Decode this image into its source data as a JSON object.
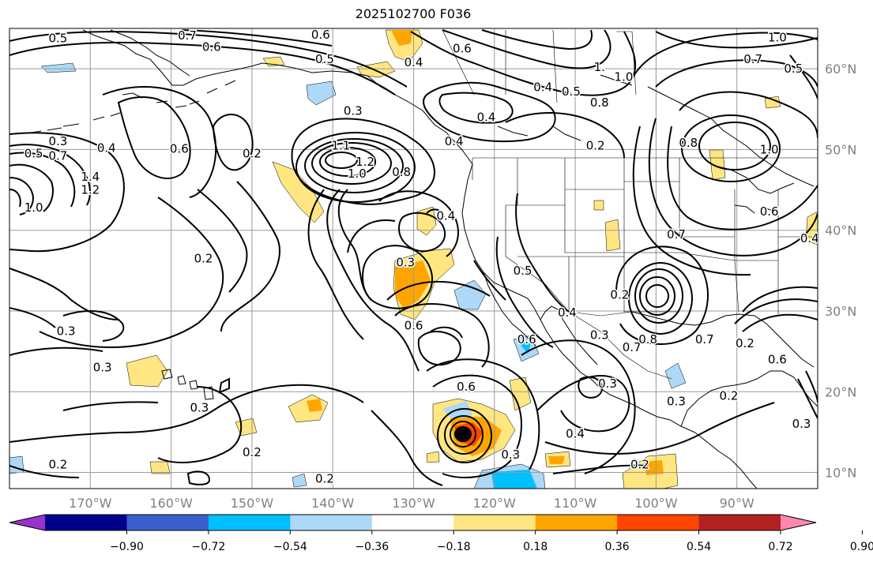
{
  "title": "2025102700 F036",
  "map": {
    "lon_range": [
      -180,
      -80
    ],
    "lat_range": [
      8,
      65
    ],
    "lon_ticks": [
      {
        "value": -170,
        "label": "170°W"
      },
      {
        "value": -160,
        "label": "160°W"
      },
      {
        "value": -150,
        "label": "150°W"
      },
      {
        "value": -140,
        "label": "140°W"
      },
      {
        "value": -130,
        "label": "130°W"
      },
      {
        "value": -120,
        "label": "120°W"
      },
      {
        "value": -110,
        "label": "110°W"
      },
      {
        "value": -100,
        "label": "100°W"
      },
      {
        "value": -90,
        "label": "90°W"
      }
    ],
    "lat_ticks": [
      {
        "value": 60,
        "label": "60°N"
      },
      {
        "value": 50,
        "label": "50°N"
      },
      {
        "value": 40,
        "label": "40°N"
      },
      {
        "value": 30,
        "label": "30°N"
      },
      {
        "value": 20,
        "label": "20°N"
      },
      {
        "value": 10,
        "label": "10°N"
      }
    ],
    "contour_labels": [
      {
        "lon": -174,
        "lat": 63.8,
        "text": "0.5"
      },
      {
        "lon": -158,
        "lat": 64.1,
        "text": "0.7"
      },
      {
        "lon": -155,
        "lat": 62.7,
        "text": "0.6"
      },
      {
        "lon": -141,
        "lat": 61.2,
        "text": "0.5"
      },
      {
        "lon": -141.5,
        "lat": 64.2,
        "text": "0.6"
      },
      {
        "lon": -130,
        "lat": 60.8,
        "text": "0.4"
      },
      {
        "lon": -124,
        "lat": 62.5,
        "text": "0.6"
      },
      {
        "lon": -107,
        "lat": 60.2,
        "text": "1."
      },
      {
        "lon": -88,
        "lat": 61.2,
        "text": "0.7"
      },
      {
        "lon": -85,
        "lat": 63.9,
        "text": "1.0"
      },
      {
        "lon": -83,
        "lat": 60.0,
        "text": "0.5"
      },
      {
        "lon": -104,
        "lat": 59.0,
        "text": "1.0"
      },
      {
        "lon": -110.5,
        "lat": 57.2,
        "text": "0.5"
      },
      {
        "lon": -114,
        "lat": 57.7,
        "text": "0.4"
      },
      {
        "lon": -107,
        "lat": 55.8,
        "text": "0.8"
      },
      {
        "lon": -121,
        "lat": 54.0,
        "text": "0.4"
      },
      {
        "lon": -137.5,
        "lat": 54.8,
        "text": "0.3"
      },
      {
        "lon": -174,
        "lat": 51.0,
        "text": "0.3"
      },
      {
        "lon": -177,
        "lat": 49.5,
        "text": "0.5"
      },
      {
        "lon": -174,
        "lat": 49.2,
        "text": "0.7"
      },
      {
        "lon": -168,
        "lat": 50.2,
        "text": "0.4"
      },
      {
        "lon": -159,
        "lat": 50.1,
        "text": "0.6"
      },
      {
        "lon": -150,
        "lat": 49.5,
        "text": "0.2"
      },
      {
        "lon": -107.5,
        "lat": 50.5,
        "text": "0.2"
      },
      {
        "lon": -96,
        "lat": 50.8,
        "text": "0.8"
      },
      {
        "lon": -86,
        "lat": 50.0,
        "text": "1.0"
      },
      {
        "lon": -170,
        "lat": 46.6,
        "text": "1.4"
      },
      {
        "lon": -170,
        "lat": 45.0,
        "text": "1.2"
      },
      {
        "lon": -137,
        "lat": 47.0,
        "text": "1.0"
      },
      {
        "lon": -136,
        "lat": 48.5,
        "text": "1.2"
      },
      {
        "lon": -139,
        "lat": 50.5,
        "text": "1.1"
      },
      {
        "lon": -131.5,
        "lat": 47.2,
        "text": "0.8"
      },
      {
        "lon": -177,
        "lat": 42.8,
        "text": "1.0"
      },
      {
        "lon": -125,
        "lat": 51.0,
        "text": "0.4"
      },
      {
        "lon": -126,
        "lat": 41.8,
        "text": "0.4"
      },
      {
        "lon": -131,
        "lat": 36.0,
        "text": "0.3"
      },
      {
        "lon": -156,
        "lat": 36.5,
        "text": "0.2"
      },
      {
        "lon": -116.5,
        "lat": 35.0,
        "text": "0.5"
      },
      {
        "lon": -86,
        "lat": 42.3,
        "text": "0.6"
      },
      {
        "lon": -97.5,
        "lat": 39.5,
        "text": "0.7"
      },
      {
        "lon": -104.5,
        "lat": 32.0,
        "text": "0.2"
      },
      {
        "lon": -111,
        "lat": 29.8,
        "text": "0.4"
      },
      {
        "lon": -116,
        "lat": 26.5,
        "text": "0.6"
      },
      {
        "lon": -107,
        "lat": 27.0,
        "text": "0.3"
      },
      {
        "lon": -130,
        "lat": 28.2,
        "text": "0.6"
      },
      {
        "lon": -123.5,
        "lat": 20.6,
        "text": "0.6"
      },
      {
        "lon": -106,
        "lat": 21.0,
        "text": "0.3"
      },
      {
        "lon": -103,
        "lat": 25.5,
        "text": "0.7"
      },
      {
        "lon": -101,
        "lat": 26.5,
        "text": "0.8"
      },
      {
        "lon": -97.5,
        "lat": 18.8,
        "text": "0.3"
      },
      {
        "lon": -91,
        "lat": 19.5,
        "text": "0.2"
      },
      {
        "lon": -85,
        "lat": 24.0,
        "text": "0.6"
      },
      {
        "lon": -89,
        "lat": 26.0,
        "text": "0.2"
      },
      {
        "lon": -173,
        "lat": 27.5,
        "text": "0.3"
      },
      {
        "lon": -168.5,
        "lat": 23.0,
        "text": "0.3"
      },
      {
        "lon": -156.5,
        "lat": 18.0,
        "text": "0.3"
      },
      {
        "lon": -110,
        "lat": 14.8,
        "text": "0.4"
      },
      {
        "lon": -118,
        "lat": 12.2,
        "text": "0.3"
      },
      {
        "lon": -102,
        "lat": 11.0,
        "text": "0.2"
      },
      {
        "lon": -150,
        "lat": 12.5,
        "text": "0.2"
      },
      {
        "lon": -174,
        "lat": 11.0,
        "text": "0.2"
      },
      {
        "lon": -141,
        "lat": 9.2,
        "text": "0.2"
      },
      {
        "lon": -82,
        "lat": 16.0,
        "text": "0.3"
      },
      {
        "lon": -81,
        "lat": 39.0,
        "text": "0.4"
      },
      {
        "lon": -94,
        "lat": 26.5,
        "text": "0.7"
      }
    ]
  },
  "colorbar": {
    "ticks": [
      "−0.90",
      "−0.72",
      "−0.54",
      "−0.36",
      "−0.18",
      "0.18",
      "0.36",
      "0.54",
      "0.72",
      "0.90"
    ],
    "colors": [
      "#9932cc",
      "#00008b",
      "#3a5fcd",
      "#00bfff",
      "#add8f7",
      "#ffffff",
      "#ffe680",
      "#ffa500",
      "#ff4500",
      "#b22222",
      "#ff88b0"
    ]
  }
}
